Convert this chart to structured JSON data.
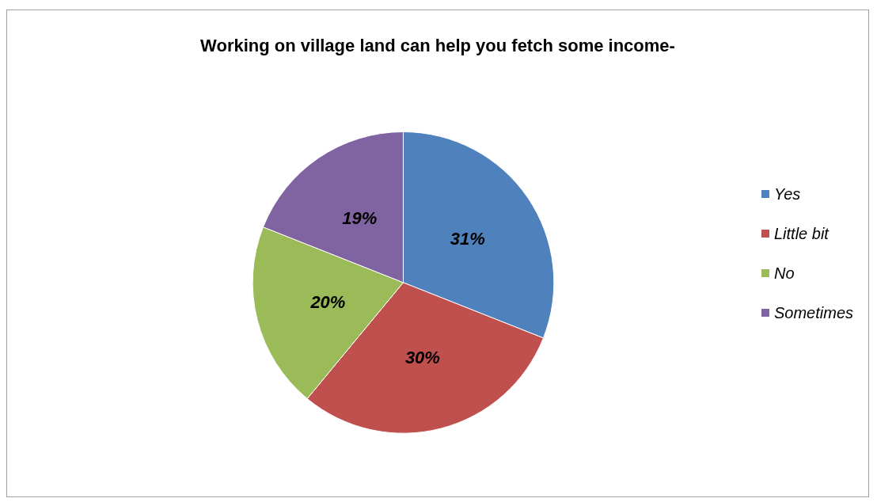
{
  "chart_data": {
    "type": "pie",
    "title": "Working on village land can help you fetch some income-",
    "categories": [
      "Yes",
      "Little bit",
      "No",
      "Sometimes"
    ],
    "values": [
      31,
      30,
      20,
      19
    ],
    "colors": [
      "#4f81bd",
      "#c0504d",
      "#9bbb59",
      "#8064a2"
    ],
    "value_labels": [
      "31%",
      "30%",
      "20%",
      "19%"
    ],
    "legend": "right"
  }
}
